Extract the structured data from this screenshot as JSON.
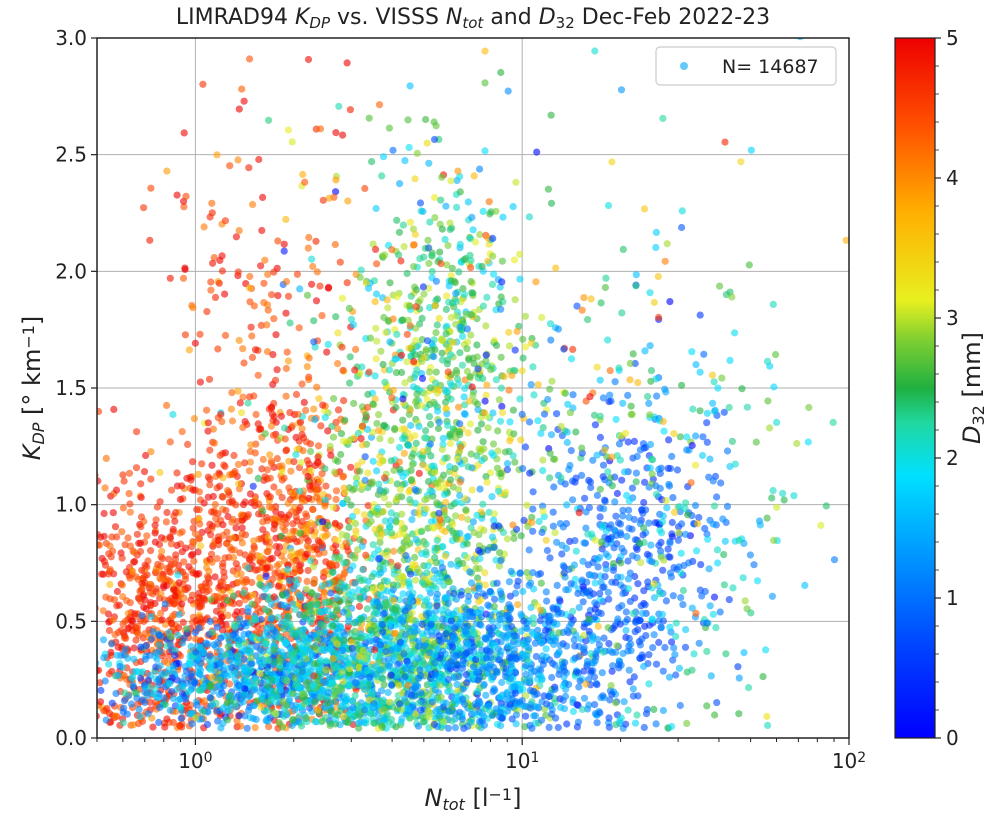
{
  "chart_data": {
    "type": "scatter",
    "title_parts": [
      {
        "t": "LIMRAD94 "
      },
      {
        "t": "K",
        "it": true
      },
      {
        "t": "DP",
        "it": true,
        "sub": true
      },
      {
        "t": " vs. VISSS "
      },
      {
        "t": "N",
        "it": true
      },
      {
        "t": "tot",
        "it": true,
        "sub": true
      },
      {
        "t": " and "
      },
      {
        "t": "D",
        "it": true
      },
      {
        "t": "32",
        "sub": true
      },
      {
        "t": " Dec-Feb 2022-23"
      }
    ],
    "xlabel_parts": [
      {
        "t": "N",
        "it": true
      },
      {
        "t": "tot",
        "it": true,
        "sub": true
      },
      {
        "t": " [l"
      },
      {
        "t": "−1",
        "sup": true
      },
      {
        "t": "]"
      }
    ],
    "ylabel_parts": [
      {
        "t": "K",
        "it": true
      },
      {
        "t": "DP",
        "it": true,
        "sub": true
      },
      {
        "t": " [° km"
      },
      {
        "t": "−1",
        "sup": true
      },
      {
        "t": "]"
      }
    ],
    "colorbar_label_parts": [
      {
        "t": "D",
        "it": true
      },
      {
        "t": "32",
        "sub": true
      },
      {
        "t": " [mm]"
      }
    ],
    "x_scale": "log",
    "xlim": [
      0.5,
      100
    ],
    "ylim": [
      0.0,
      3.0
    ],
    "x_ticks": [
      {
        "value": 1,
        "base": "10",
        "exp": "0"
      },
      {
        "value": 10,
        "base": "10",
        "exp": "1"
      },
      {
        "value": 100,
        "base": "10",
        "exp": "2"
      }
    ],
    "y_ticks": [
      "0.0",
      "0.5",
      "1.0",
      "1.5",
      "2.0",
      "2.5",
      "3.0"
    ],
    "colorbar_ticks": [
      "0",
      "1",
      "2",
      "3",
      "4",
      "5"
    ],
    "colorbar_range": [
      0,
      5
    ],
    "colormap": "jet",
    "grid": true,
    "legend": {
      "label": "N= 14687",
      "position": "top-right",
      "marker_color": "#33b5f5"
    },
    "n_points": 14687,
    "marker_alpha": 0.6,
    "clusters": [
      {
        "x_log_mean": -0.05,
        "x_log_sd": 0.17,
        "y_mean": 0.55,
        "y_sd": 0.3,
        "c_mean": 4.6,
        "c_sd": 0.35,
        "n": 900
      },
      {
        "x_log_mean": 0.3,
        "x_log_sd": 0.12,
        "y_mean": 0.8,
        "y_sd": 0.38,
        "c_mean": 4.5,
        "c_sd": 0.4,
        "n": 650
      },
      {
        "x_log_mean": 0.2,
        "x_log_sd": 0.25,
        "y_mean": 0.28,
        "y_sd": 0.12,
        "c_mean": 1.4,
        "c_sd": 0.45,
        "n": 800
      },
      {
        "x_log_mean": 0.55,
        "x_log_sd": 0.22,
        "y_mean": 0.35,
        "y_sd": 0.18,
        "c_mean": 2.0,
        "c_sd": 0.5,
        "n": 1000
      },
      {
        "x_log_mean": 0.7,
        "x_log_sd": 0.18,
        "y_mean": 0.8,
        "y_sd": 0.5,
        "c_mean": 2.6,
        "c_sd": 0.6,
        "n": 900
      },
      {
        "x_log_mean": 0.75,
        "x_log_sd": 0.12,
        "y_mean": 1.7,
        "y_sd": 0.4,
        "c_mean": 2.5,
        "c_sd": 0.5,
        "n": 400
      },
      {
        "x_log_mean": 0.95,
        "x_log_sd": 0.2,
        "y_mean": 0.35,
        "y_sd": 0.2,
        "c_mean": 1.2,
        "c_sd": 0.4,
        "n": 650
      },
      {
        "x_log_mean": 1.3,
        "x_log_sd": 0.15,
        "y_mean": 0.75,
        "y_sd": 0.35,
        "c_mean": 0.85,
        "c_sd": 0.3,
        "n": 400
      },
      {
        "x_log_mean": 1.45,
        "x_log_sd": 0.22,
        "y_mean": 0.9,
        "y_sd": 0.55,
        "c_mean": 2.1,
        "c_sd": 0.6,
        "n": 250
      },
      {
        "x_log_mean": 0.9,
        "x_log_sd": 0.4,
        "y_mean": 1.6,
        "y_sd": 0.6,
        "c_mean": 2.5,
        "c_sd": 1.2,
        "n": 300
      },
      {
        "x_log_mean": 0.25,
        "x_log_sd": 0.2,
        "y_mean": 1.8,
        "y_sd": 0.55,
        "c_mean": 4.6,
        "c_sd": 0.4,
        "n": 200
      }
    ]
  }
}
